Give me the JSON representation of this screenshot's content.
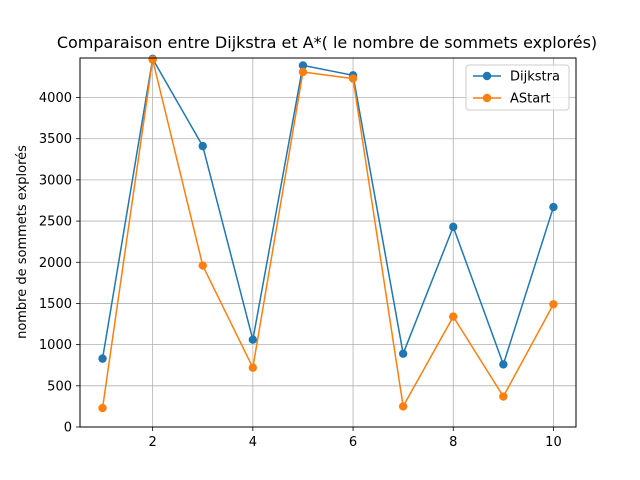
{
  "chart_data": {
    "type": "line",
    "title": "Comparaison entre Dijkstra et A*( le nombre de sommets explorés)",
    "xlabel": "",
    "ylabel": "nombre de sommets explorés",
    "x": [
      1,
      2,
      3,
      4,
      5,
      6,
      7,
      8,
      9,
      10
    ],
    "xticks": [
      2,
      4,
      6,
      8,
      10
    ],
    "xlim": [
      0.55,
      10.45
    ],
    "yticks": [
      0,
      500,
      1000,
      1500,
      2000,
      2500,
      3000,
      3500,
      4000
    ],
    "ylim": [
      0,
      4480
    ],
    "grid": true,
    "legend_position": "top-right",
    "series": [
      {
        "name": "Dijkstra",
        "color": "#1f77b4",
        "values": [
          830,
          4470,
          3410,
          1060,
          4390,
          4270,
          890,
          2430,
          760,
          2670
        ]
      },
      {
        "name": "AStart",
        "color": "#ff7f0e",
        "values": [
          230,
          4460,
          1960,
          720,
          4310,
          4230,
          250,
          1340,
          370,
          1490
        ]
      }
    ]
  }
}
